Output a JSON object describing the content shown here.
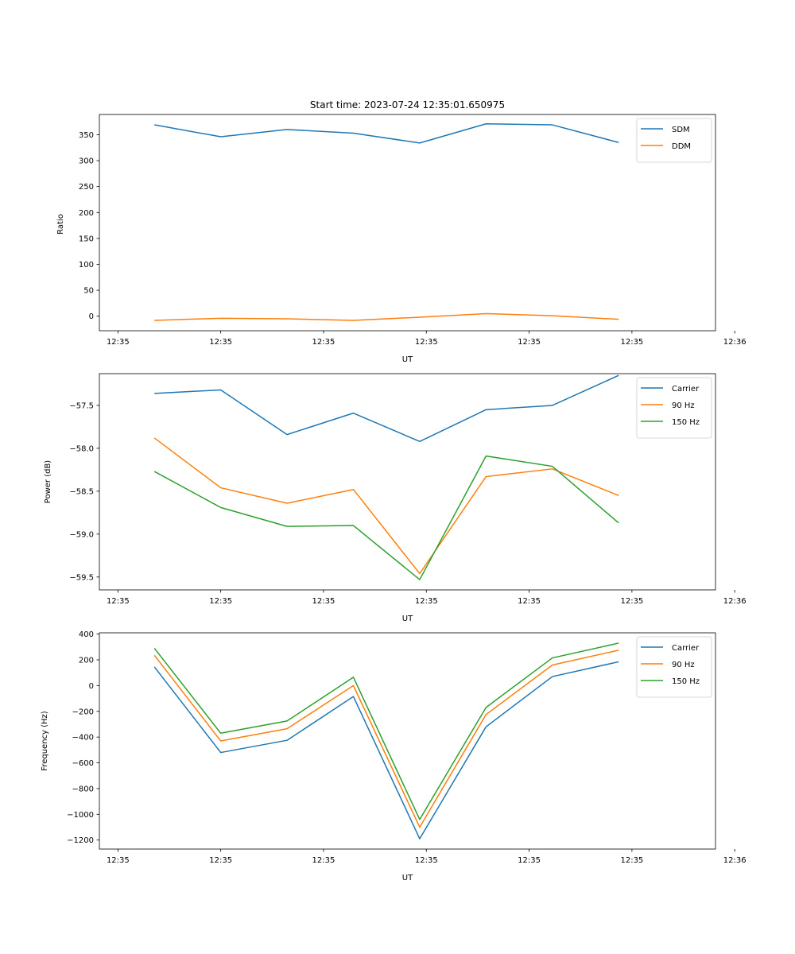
{
  "chart_data": [
    {
      "type": "line",
      "title": "Start time: 2023-07-24 12:35:01.650975",
      "xlabel": "UT",
      "ylabel": "Ratio",
      "x": [
        1,
        2,
        3,
        4,
        5,
        6,
        7,
        8
      ],
      "xlim": [
        0.17,
        9.46
      ],
      "xticks": [
        0.45,
        2.0,
        3.55,
        5.1,
        6.65,
        8.2,
        9.75
      ],
      "xtick_labels": [
        "12:35",
        "12:35",
        "12:35",
        "12:35",
        "12:35",
        "12:35",
        "12:36"
      ],
      "ylim": [
        -28,
        389
      ],
      "yticks": [
        0,
        50,
        100,
        150,
        200,
        250,
        300,
        350
      ],
      "ytick_labels": [
        "0",
        "50",
        "100",
        "150",
        "200",
        "250",
        "300",
        "350"
      ],
      "legend": "top-right",
      "series": [
        {
          "name": "SDM",
          "color": "#1f77b4",
          "values": [
            369,
            346,
            360,
            353,
            334,
            371,
            369,
            335
          ]
        },
        {
          "name": "DDM",
          "color": "#ff7f0e",
          "values": [
            -8,
            -4,
            -5,
            -8,
            -2,
            5,
            1,
            -6
          ]
        }
      ]
    },
    {
      "type": "line",
      "title": "",
      "xlabel": "UT",
      "ylabel": "Power (dB)",
      "x": [
        1,
        2,
        3,
        4,
        5,
        6,
        7,
        8
      ],
      "xlim": [
        0.17,
        9.46
      ],
      "xticks": [
        0.45,
        2.0,
        3.55,
        5.1,
        6.65,
        8.2,
        9.75
      ],
      "xtick_labels": [
        "12:35",
        "12:35",
        "12:35",
        "12:35",
        "12:35",
        "12:35",
        "12:36"
      ],
      "ylim": [
        -59.65,
        -57.13
      ],
      "yticks": [
        -59.5,
        -59.0,
        -58.5,
        -58.0,
        -57.5
      ],
      "ytick_labels": [
        "−59.5",
        "−59.0",
        "−58.5",
        "−58.0",
        "−57.5"
      ],
      "legend": "top-right",
      "series": [
        {
          "name": "Carrier",
          "color": "#1f77b4",
          "values": [
            -57.36,
            -57.32,
            -57.84,
            -57.59,
            -57.92,
            -57.55,
            -57.5,
            -57.15
          ]
        },
        {
          "name": "90 Hz",
          "color": "#ff7f0e",
          "values": [
            -57.88,
            -58.46,
            -58.64,
            -58.48,
            -59.46,
            -58.33,
            -58.24,
            -58.55
          ]
        },
        {
          "name": "150 Hz",
          "color": "#2ca02c",
          "values": [
            -58.27,
            -58.69,
            -58.91,
            -58.9,
            -59.53,
            -58.09,
            -58.21,
            -58.87
          ]
        }
      ]
    },
    {
      "type": "line",
      "title": "",
      "xlabel": "UT",
      "ylabel": "Frequency (Hz)",
      "x": [
        1,
        2,
        3,
        4,
        5,
        6,
        7,
        8
      ],
      "xlim": [
        0.17,
        9.46
      ],
      "xticks": [
        0.45,
        2.0,
        3.55,
        5.1,
        6.65,
        8.2,
        9.75
      ],
      "xtick_labels": [
        "12:35",
        "12:35",
        "12:35",
        "12:35",
        "12:35",
        "12:35",
        "12:36"
      ],
      "ylim": [
        -1270,
        410
      ],
      "yticks": [
        -1200,
        -1000,
        -800,
        -600,
        -400,
        -200,
        0,
        200,
        400
      ],
      "ytick_labels": [
        "−1200",
        "−1000",
        "−800",
        "−600",
        "−400",
        "−200",
        "0",
        "200",
        "400"
      ],
      "legend": "top-right",
      "series": [
        {
          "name": "Carrier",
          "color": "#1f77b4",
          "values": [
            145,
            -520,
            -425,
            -85,
            -1190,
            -320,
            70,
            185
          ]
        },
        {
          "name": "90 Hz",
          "color": "#ff7f0e",
          "values": [
            235,
            -430,
            -335,
            0,
            -1100,
            -225,
            160,
            275
          ]
        },
        {
          "name": "150 Hz",
          "color": "#2ca02c",
          "values": [
            290,
            -370,
            -275,
            65,
            -1040,
            -170,
            215,
            330
          ]
        }
      ]
    }
  ]
}
